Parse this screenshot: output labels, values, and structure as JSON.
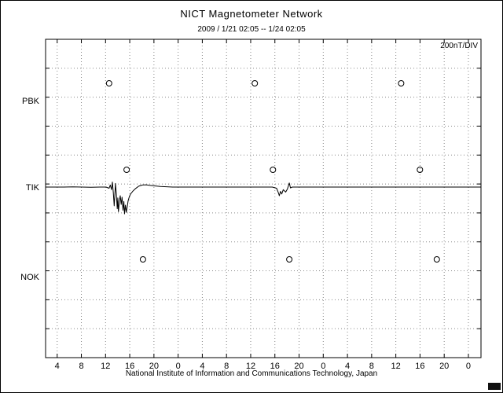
{
  "page": {
    "title": "NICT Magnetometer Network",
    "subtitle": "2009 / 1/21  02:05 -- 1/24  02:05",
    "scale_label": "200nT/DIV",
    "footer": "National Institute of Information and Communications Technology, Japan"
  },
  "chart_data": {
    "type": "line",
    "title": "NICT Magnetometer Network",
    "time_range_label": "2009 / 1/21  02:05 -- 1/24  02:05",
    "duration_hours": 72,
    "y_scale_label": "200nT/DIV",
    "nT_per_division": 200,
    "grid": true,
    "x_axis": {
      "tick_labels": [
        "4",
        "8",
        "12",
        "16",
        "20",
        "0",
        "4",
        "8",
        "12",
        "16",
        "20",
        "0",
        "4",
        "8",
        "12",
        "16",
        "20",
        "0"
      ],
      "first_tick_hour_offset": 1.9167,
      "tick_interval_hours": 4
    },
    "stations": [
      {
        "name": "PBK",
        "has_trace": false,
        "marker_hours": [
          10.5,
          34.6,
          58.8
        ]
      },
      {
        "name": "TIK",
        "has_trace": true,
        "marker_hours": [
          13.4,
          37.6,
          61.9
        ]
      },
      {
        "name": "NOK",
        "has_trace": false,
        "marker_hours": [
          16.1,
          40.3,
          64.7
        ]
      }
    ],
    "series": [
      {
        "name": "TIK",
        "units": "nT",
        "points": [
          [
            0,
            0
          ],
          [
            1.5,
            0
          ],
          [
            3,
            0
          ],
          [
            4.5,
            1
          ],
          [
            6,
            0
          ],
          [
            7.5,
            -1
          ],
          [
            9,
            0
          ],
          [
            10,
            0
          ],
          [
            10.5,
            -8
          ],
          [
            10.7,
            14
          ],
          [
            10.9,
            -18
          ],
          [
            11.05,
            35
          ],
          [
            11.2,
            -40
          ],
          [
            11.35,
            -130
          ],
          [
            11.45,
            -55
          ],
          [
            11.55,
            25
          ],
          [
            11.7,
            -45
          ],
          [
            11.85,
            -150
          ],
          [
            11.95,
            -75
          ],
          [
            12.05,
            -170
          ],
          [
            12.2,
            -95
          ],
          [
            12.35,
            -60
          ],
          [
            12.5,
            -120
          ],
          [
            12.65,
            -70
          ],
          [
            12.8,
            -160
          ],
          [
            12.95,
            -100
          ],
          [
            13.05,
            -185
          ],
          [
            13.2,
            -125
          ],
          [
            13.35,
            -175
          ],
          [
            13.5,
            -135
          ],
          [
            13.65,
            -95
          ],
          [
            13.85,
            -65
          ],
          [
            14.1,
            -45
          ],
          [
            14.5,
            -25
          ],
          [
            14.9,
            -10
          ],
          [
            15.4,
            6
          ],
          [
            16,
            14
          ],
          [
            16.6,
            16
          ],
          [
            17.2,
            12
          ],
          [
            18,
            8
          ],
          [
            19,
            4
          ],
          [
            20,
            2
          ],
          [
            21,
            0
          ],
          [
            24,
            0
          ],
          [
            28,
            0
          ],
          [
            32,
            0
          ],
          [
            36,
            0
          ],
          [
            37.5,
            0
          ],
          [
            38.2,
            -8
          ],
          [
            38.45,
            -35
          ],
          [
            38.65,
            -60
          ],
          [
            38.85,
            -30
          ],
          [
            39.05,
            -48
          ],
          [
            39.3,
            -18
          ],
          [
            39.7,
            -35
          ],
          [
            40,
            -12
          ],
          [
            40.3,
            28
          ],
          [
            40.5,
            -6
          ],
          [
            40.8,
            0
          ],
          [
            42,
            0
          ],
          [
            46,
            0
          ],
          [
            50,
            0
          ],
          [
            54,
            0
          ],
          [
            58,
            0
          ],
          [
            62,
            0
          ],
          [
            66,
            0
          ],
          [
            70,
            0
          ],
          [
            72,
            0
          ]
        ]
      }
    ]
  }
}
